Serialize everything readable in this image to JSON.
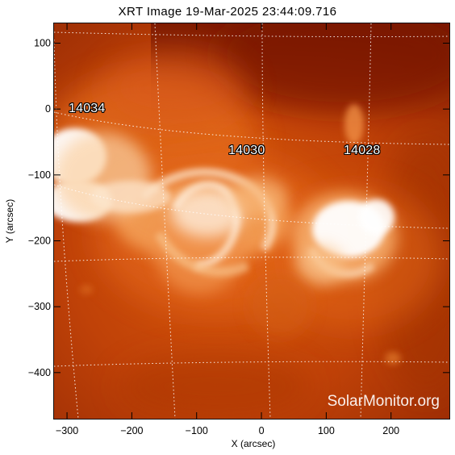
{
  "image": {
    "title": "XRT Image 19-Mar-2025 23:44:09.716",
    "watermark": "SolarMonitor.org",
    "colors": {
      "background_dark": "#8f2203",
      "mid": "#c84a08",
      "bright": "#ffffff",
      "glow": "#f4a25a",
      "grid": "#ffffff"
    }
  },
  "axes": {
    "xlabel": "X (arcsec)",
    "ylabel": "Y (arcsec)",
    "xlim": [
      -320,
      290
    ],
    "ylim": [
      -470,
      130
    ],
    "xticks": [
      {
        "value": -300,
        "label": "−300"
      },
      {
        "value": -200,
        "label": "−200"
      },
      {
        "value": -100,
        "label": "−100"
      },
      {
        "value": 0,
        "label": "0"
      },
      {
        "value": 100,
        "label": "100"
      },
      {
        "value": 200,
        "label": "200"
      }
    ],
    "yticks": [
      {
        "value": 100,
        "label": "100"
      },
      {
        "value": 0,
        "label": "0"
      },
      {
        "value": -100,
        "label": "−100"
      },
      {
        "value": -200,
        "label": "−200"
      },
      {
        "value": -300,
        "label": "−300"
      },
      {
        "value": -400,
        "label": "−400"
      }
    ]
  },
  "regions": [
    {
      "label": "14034"
    },
    {
      "label": "14030"
    },
    {
      "label": "14028"
    }
  ]
}
